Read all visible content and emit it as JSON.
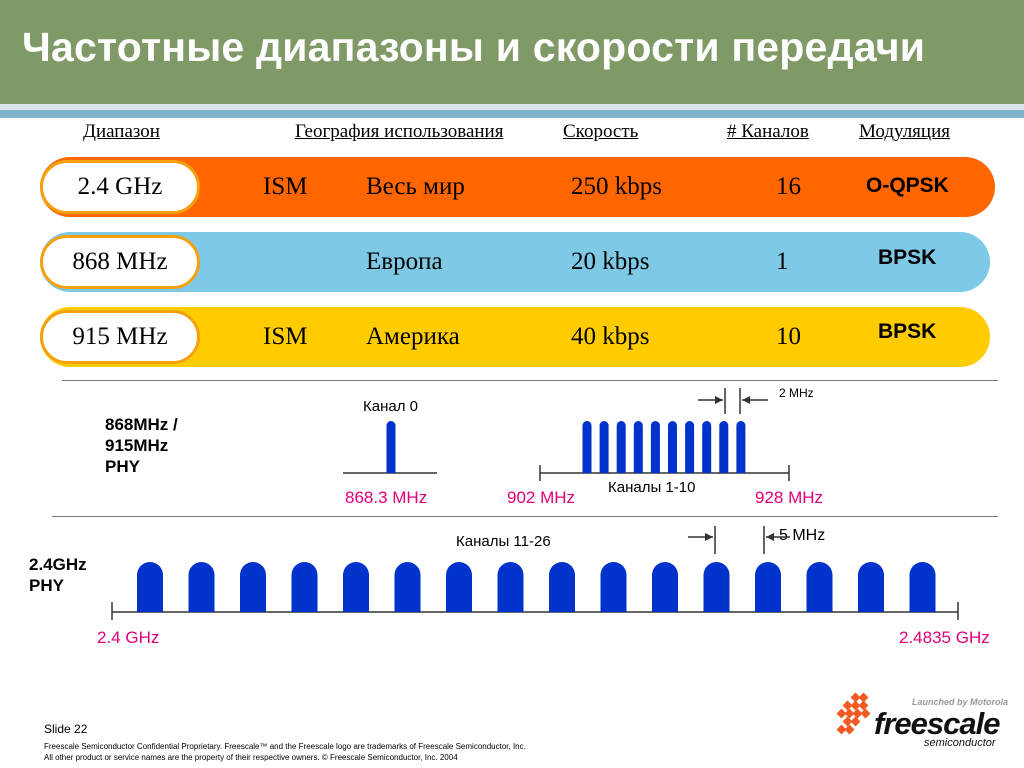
{
  "title": "Частотные диапазоны и скорости передачи",
  "table": {
    "headers": [
      "Диапазон",
      "География использования",
      "Скорость",
      "# Каналов",
      "Модуляция"
    ],
    "rows": [
      {
        "band": "2.4 GHz",
        "ism": "ISM",
        "region": "Весь мир",
        "rate": "250 kbps",
        "channels": "16",
        "modulation": "O-QPSK",
        "color": "#ff6600"
      },
      {
        "band": "868 MHz",
        "ism": "",
        "region": "Европа",
        "rate": "20 kbps",
        "channels": "1",
        "modulation": "BPSK",
        "color": "#7dc9e6"
      },
      {
        "band": "915 MHz",
        "ism": "ISM",
        "region": "Америка",
        "rate": "40 kbps",
        "channels": "10",
        "modulation": "BPSK",
        "color": "#ffcc00"
      }
    ],
    "pill_border_color": "#f4a10e"
  },
  "diagram": {
    "phy_sub_ghz": {
      "label": "868MHz /\n915MHz\nPHY",
      "channel0_label": "Канал 0",
      "channel0_freq": "868.3 MHz",
      "channels_label": "Каналы 1-10",
      "channel_count": 10,
      "spacing_label": "2 MHz",
      "start_freq": "902 MHz",
      "end_freq": "928 MHz"
    },
    "phy_24ghz": {
      "label": "2.4GHz\nPHY",
      "channels_label": "Каналы 11-26",
      "channel_count": 16,
      "spacing_label": "5 MHz",
      "start_freq": "2.4 GHz",
      "end_freq": "2.4835 GHz"
    },
    "pulse_color": "#0033cc",
    "freq_label_color": "#e2007a"
  },
  "footer": {
    "slide": "Slide 22",
    "line1": "Freescale Semiconductor Confidential Proprietary. Freescale™ and the Freescale logo are trademarks of Freescale Semiconductor, Inc.",
    "line2": "All other product or service names are the property of their respective owners. © Freescale Semiconductor, Inc. 2004"
  },
  "logo": {
    "tagline": "Launched by Motorola",
    "name": "freescale",
    "sub": "semiconductor",
    "color": "#f15a22"
  }
}
